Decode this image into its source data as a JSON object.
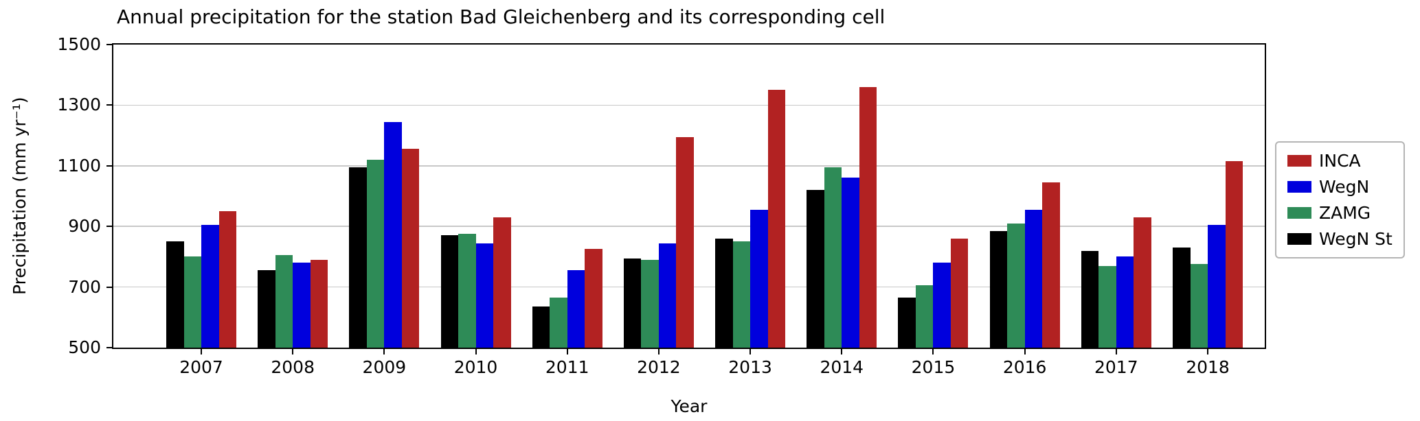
{
  "chart_data": {
    "type": "bar",
    "title": "Annual precipitation for the station Bad Gleichenberg and its corresponding cell",
    "xlabel": "Year",
    "ylabel": "Precipitation (mm yr⁻¹)",
    "ylim": [
      500,
      1500
    ],
    "yticks": [
      500,
      700,
      900,
      1100,
      1300,
      1500
    ],
    "grid": "horizontal",
    "legend_position": "right-outside",
    "legend_order": "reversed",
    "categories": [
      "2007",
      "2008",
      "2009",
      "2010",
      "2011",
      "2012",
      "2013",
      "2014",
      "2015",
      "2016",
      "2017",
      "2018"
    ],
    "series": [
      {
        "name": "WegN St",
        "color": "#000000",
        "values": [
          850,
          755,
          1095,
          870,
          635,
          795,
          860,
          1020,
          665,
          885,
          820,
          830
        ]
      },
      {
        "name": "ZAMG",
        "color": "#2e8b57",
        "values": [
          800,
          805,
          1120,
          875,
          665,
          790,
          850,
          1095,
          705,
          910,
          770,
          775
        ]
      },
      {
        "name": "WegN",
        "color": "#0000dd",
        "values": [
          905,
          780,
          1245,
          845,
          755,
          845,
          955,
          1060,
          780,
          955,
          800,
          905
        ]
      },
      {
        "name": "INCA",
        "color": "#b22222",
        "values": [
          950,
          790,
          1155,
          930,
          825,
          1195,
          1350,
          1360,
          860,
          1045,
          930,
          1115
        ]
      }
    ]
  }
}
